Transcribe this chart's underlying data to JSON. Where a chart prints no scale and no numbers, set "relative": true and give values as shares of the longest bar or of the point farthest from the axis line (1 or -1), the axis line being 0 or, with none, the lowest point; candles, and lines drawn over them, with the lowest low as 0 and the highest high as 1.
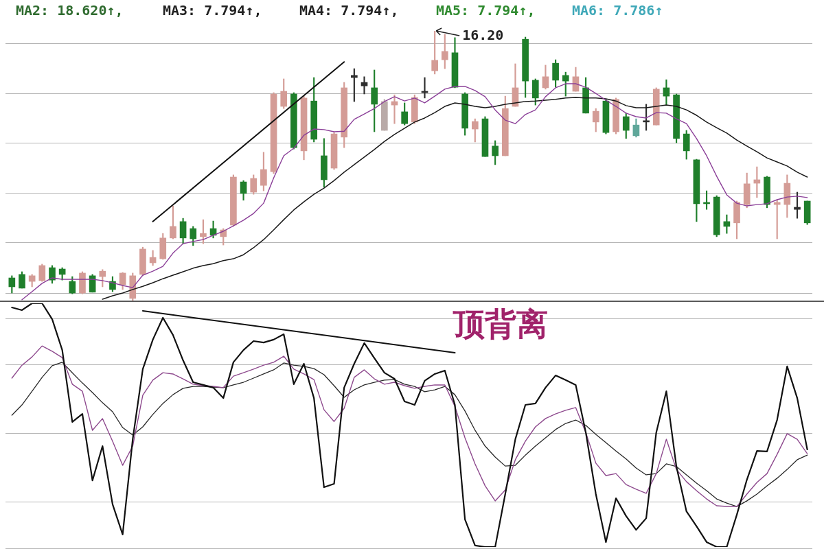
{
  "chart_data": [
    {
      "type": "candlestick",
      "relative": true,
      "tick_labels": false,
      "grid": true,
      "categories": [
        null,
        null,
        null,
        null,
        null,
        null,
        null,
        null,
        null,
        null,
        null,
        null,
        null,
        null,
        null,
        null,
        null,
        null,
        null,
        null,
        null,
        null,
        null,
        null,
        null,
        null,
        null,
        null,
        null,
        null,
        null,
        null,
        null,
        null,
        null,
        null,
        null,
        null,
        null,
        null,
        null,
        null,
        null,
        null,
        null,
        null,
        null,
        null,
        null,
        null,
        null,
        null,
        null,
        null,
        null,
        null,
        null,
        null,
        null,
        null,
        null,
        null,
        null,
        null,
        null,
        null,
        null,
        null,
        null,
        null,
        null,
        null,
        null,
        null,
        null,
        null,
        null,
        null,
        null,
        null
      ],
      "ohlc": [
        [
          0.084,
          0.092,
          0.028,
          0.051
        ],
        [
          0.097,
          0.107,
          0.046,
          0.046
        ],
        [
          0.071,
          0.097,
          0.051,
          0.092
        ],
        [
          0.074,
          0.135,
          0.071,
          0.13
        ],
        [
          0.122,
          0.13,
          0.064,
          0.076
        ],
        [
          0.117,
          0.122,
          0.076,
          0.097
        ],
        [
          0.071,
          0.089,
          0.025,
          0.028
        ],
        [
          0.028,
          0.107,
          0.025,
          0.102
        ],
        [
          0.092,
          0.097,
          0.031,
          0.031
        ],
        [
          0.089,
          0.115,
          0.051,
          0.109
        ],
        [
          0.071,
          0.089,
          0.033,
          0.041
        ],
        [
          0.059,
          0.104,
          0.041,
          0.102
        ],
        [
          0.008,
          0.102,
          0,
          0.092
        ],
        [
          0.097,
          0.198,
          0.092,
          0.191
        ],
        [
          0.14,
          0.186,
          0.13,
          0.16
        ],
        [
          0.155,
          0.249,
          0.153,
          0.232
        ],
        [
          0.232,
          0.351,
          0.229,
          0.275
        ],
        [
          0.293,
          0.305,
          0.211,
          0.232
        ],
        [
          0.267,
          0.275,
          0.204,
          0.229
        ],
        [
          0.237,
          0.3,
          0.211,
          0.249
        ],
        [
          0.267,
          0.295,
          0.232,
          0.242
        ],
        [
          0.237,
          0.267,
          0.206,
          0.262
        ],
        [
          0.28,
          0.466,
          0.275,
          0.458
        ],
        [
          0.44,
          0.445,
          0.372,
          0.397
        ],
        [
          0.402,
          0.466,
          0.394,
          0.453
        ],
        [
          0.427,
          0.55,
          0.407,
          0.486
        ],
        [
          0.478,
          0.771,
          0.471,
          0.766
        ],
        [
          0.72,
          0.822,
          0.712,
          0.776
        ],
        [
          0.766,
          0.771,
          0.562,
          0.567
        ],
        [
          0.555,
          0.758,
          0.522,
          0.751
        ],
        [
          0.74,
          0.827,
          0.588,
          0.598
        ],
        [
          0.537,
          0.601,
          0.42,
          0.448
        ],
        [
          0.491,
          0.623,
          0.486,
          0.618
        ],
        [
          0.606,
          0.809,
          0.567,
          0.789
        ],
        [
          0.835,
          0.86,
          0.738,
          0.827
        ],
        [
          0.809,
          0.83,
          0.766,
          0.796
        ],
        [
          0.789,
          0.855,
          0.626,
          0.728
        ],
        [
          0.631,
          0.746,
          0.631,
          0.738
        ],
        [
          0.725,
          0.763,
          0.656,
          0.738
        ],
        [
          0.7,
          0.733,
          0.651,
          0.656
        ],
        [
          0.662,
          0.763,
          0.656,
          0.753
        ],
        [
          0.776,
          0.827,
          0.751,
          0.771
        ],
        [
          0.852,
          1,
          0.84,
          0.891
        ],
        [
          0.893,
          0.987,
          0.86,
          0.924
        ],
        [
          0.919,
          0.975,
          0.789,
          0.791
        ],
        [
          0.766,
          0.771,
          0.613,
          0.639
        ],
        [
          0.636,
          0.674,
          0.588,
          0.664
        ],
        [
          0.674,
          0.682,
          0.534,
          0.534
        ],
        [
          0.573,
          0.593,
          0.504,
          0.537
        ],
        [
          0.537,
          0.758,
          0.537,
          0.712
        ],
        [
          0.72,
          0.878,
          0.72,
          0.789
        ],
        [
          0.969,
          0.977,
          0.753,
          0.814
        ],
        [
          0.817,
          0.822,
          0.725,
          0.751
        ],
        [
          0.789,
          0.873,
          0.784,
          0.83
        ],
        [
          0.88,
          0.893,
          0.791,
          0.817
        ],
        [
          0.835,
          0.847,
          0.758,
          0.814
        ],
        [
          0.776,
          0.865,
          0.776,
          0.83
        ],
        [
          0.789,
          0.827,
          0.695,
          0.695
        ],
        [
          0.662,
          0.712,
          0.626,
          0.702
        ],
        [
          0.74,
          0.745,
          0.618,
          0.623
        ],
        [
          0.626,
          0.751,
          0.618,
          0.746
        ],
        [
          0.682,
          0.695,
          0.601,
          0.631
        ],
        [
          0.651,
          0.674,
          0.606,
          0.611
        ],
        [
          0.667,
          0.728,
          0.631,
          0.662
        ],
        [
          0.651,
          0.789,
          0.651,
          0.784
        ],
        [
          0.789,
          0.819,
          0.725,
          0.758
        ],
        [
          0.763,
          0.766,
          0.585,
          0.601
        ],
        [
          0.618,
          0.631,
          0.524,
          0.555
        ],
        [
          0.522,
          0.524,
          0.293,
          0.359
        ],
        [
          0.364,
          0.407,
          0.338,
          0.359
        ],
        [
          0.384,
          0.389,
          0.237,
          0.244
        ],
        [
          0.293,
          0.318,
          0.249,
          0.275
        ],
        [
          0.288,
          0.369,
          0.229,
          0.364
        ],
        [
          0.356,
          0.473,
          0.344,
          0.433
        ],
        [
          0.435,
          0.496,
          0.382,
          0.448
        ],
        [
          0.458,
          0.461,
          0.344,
          0.356
        ],
        [
          0.356,
          0.372,
          0.229,
          0.364
        ],
        [
          0.356,
          0.466,
          0.308,
          0.435
        ],
        [
          0.346,
          0.402,
          0.305,
          0.338
        ],
        [
          0.369,
          0.369,
          0.282,
          0.288
        ]
      ],
      "colors": [
        "#1f7f2b",
        "#1f7f2b",
        "#d49c96",
        "#d49c96",
        "#1f7f2b",
        "#1f7f2b",
        "#1f7f2b",
        "#d49c96",
        "#1f7f2b",
        "#d49c96",
        "#1f7f2b",
        "#d49c96",
        "#d49c96",
        "#d49c96",
        "#d49c96",
        "#d49c96",
        "#d49c96",
        "#1f7f2b",
        "#1f7f2b",
        "#d49c96",
        "#1f7f2b",
        "#d49c96",
        "#d49c96",
        "#1f7f2b",
        "#d49c96",
        "#d49c96",
        "#d49c96",
        "#d49c96",
        "#1f7f2b",
        "#d49c96",
        "#1f7f2b",
        "#1f7f2b",
        "#d49c96",
        "#d49c96",
        "#2e2e2e",
        "#2e2e2e",
        "#1f7f2b",
        "#b9aaa8",
        "#d49c96",
        "#1f7f2b",
        "#d49c96",
        "#2e2e2e",
        "#d49c96",
        "#d49c96",
        "#1f7f2b",
        "#1f7f2b",
        "#d49c96",
        "#1f7f2b",
        "#1f7f2b",
        "#d49c96",
        "#d49c96",
        "#1f7f2b",
        "#1f7f2b",
        "#d49c96",
        "#1f7f2b",
        "#1f7f2b",
        "#d49c96",
        "#1f7f2b",
        "#d49c96",
        "#1f7f2b",
        "#d49c96",
        "#1f7f2b",
        "#5fa79a",
        "#2e2e2e",
        "#d49c96",
        "#1f7f2b",
        "#1f7f2b",
        "#1f7f2b",
        "#1f7f2b",
        "#1f7f2b",
        "#1f7f2b",
        "#1f7f2b",
        "#d49c96",
        "#d49c96",
        "#d49c96",
        "#1f7f2b",
        "#d49c96",
        "#d49c96",
        "#2e2e2e",
        "#1f7f2b"
      ],
      "series": [
        {
          "type": "line",
          "color": "#8b3f98",
          "values": [
            null,
            0.003,
            0.033,
            0.064,
            0.084,
            0.079,
            0.079,
            0.079,
            0.079,
            0.074,
            0.066,
            0.056,
            0.048,
            0.094,
            0.109,
            0.127,
            0.176,
            0.211,
            0.219,
            0.226,
            0.242,
            0.257,
            0.277,
            0.298,
            0.323,
            0.361,
            0.455,
            0.537,
            0.565,
            0.613,
            0.636,
            0.634,
            0.626,
            0.628,
            0.672,
            0.692,
            0.712,
            0.738,
            0.756,
            0.74,
            0.751,
            0.733,
            0.758,
            0.784,
            0.794,
            0.794,
            0.779,
            0.756,
            0.707,
            0.669,
            0.656,
            0.69,
            0.707,
            0.756,
            0.789,
            0.804,
            0.804,
            0.791,
            0.768,
            0.743,
            0.72,
            0.695,
            0.682,
            0.677,
            0.697,
            0.695,
            0.674,
            0.656,
            0.601,
            0.537,
            0.461,
            0.392,
            0.361,
            0.351,
            0.356,
            0.359,
            0.374,
            0.384,
            0.387,
            0.382
          ]
        },
        {
          "type": "line",
          "color": "#1a1a1a",
          "values": [
            null,
            null,
            null,
            null,
            null,
            null,
            null,
            null,
            null,
            0.005,
            0.018,
            0.028,
            0.041,
            0.053,
            0.066,
            0.081,
            0.094,
            0.107,
            0.12,
            0.13,
            0.137,
            0.148,
            0.155,
            0.17,
            0.196,
            0.226,
            0.262,
            0.3,
            0.336,
            0.366,
            0.394,
            0.417,
            0.445,
            0.476,
            0.504,
            0.532,
            0.56,
            0.59,
            0.616,
            0.639,
            0.662,
            0.677,
            0.697,
            0.72,
            0.733,
            0.728,
            0.72,
            0.715,
            0.72,
            0.728,
            0.733,
            0.738,
            0.74,
            0.743,
            0.746,
            0.751,
            0.753,
            0.751,
            0.751,
            0.748,
            0.74,
            0.723,
            0.715,
            0.715,
            0.72,
            0.725,
            0.72,
            0.707,
            0.687,
            0.662,
            0.641,
            0.621,
            0.595,
            0.573,
            0.552,
            0.529,
            0.514,
            0.499,
            0.476,
            0.458
          ]
        },
        {
          "type": "line",
          "color": "#111111",
          "values": [
            null,
            null,
            null,
            null,
            null,
            null,
            null,
            null,
            null,
            null,
            null,
            null,
            null,
            null,
            0.293,
            null,
            null,
            null,
            null,
            null,
            null,
            null,
            null,
            null,
            null,
            null,
            null,
            null,
            null,
            null,
            null,
            null,
            null,
            0.885,
            null,
            null,
            null,
            null,
            null,
            null,
            null,
            null,
            null,
            null,
            null,
            null,
            null,
            null,
            null,
            null,
            null,
            null,
            null,
            null,
            null,
            null,
            null,
            null,
            null,
            null,
            null,
            null,
            null,
            null,
            null,
            null,
            null,
            null,
            null,
            null,
            null,
            null,
            null,
            null,
            null,
            null,
            null,
            null,
            null,
            null
          ]
        }
      ],
      "annotations": [
        "MA2: 18.620↑,",
        "MA3: 7.794↑,",
        "MA4: 7.794↑,",
        "MA5: 7.794↑,",
        "MA6: 7.786↑",
        "16.20"
      ]
    },
    {
      "type": "line",
      "relative": true,
      "tick_labels": false,
      "grid": true,
      "categories": [
        null,
        null,
        null,
        null,
        null,
        null,
        null,
        null,
        null,
        null,
        null,
        null,
        null,
        null,
        null,
        null,
        null,
        null,
        null,
        null,
        null,
        null,
        null,
        null,
        null,
        null,
        null,
        null,
        null,
        null,
        null,
        null,
        null,
        null,
        null,
        null,
        null,
        null,
        null,
        null,
        null,
        null,
        null,
        null,
        null,
        null,
        null,
        null,
        null,
        null,
        null,
        null,
        null,
        null,
        null,
        null,
        null,
        null,
        null,
        null,
        null,
        null,
        null,
        null,
        null,
        null,
        null,
        null,
        null,
        null,
        null,
        null,
        null,
        null,
        null,
        null,
        null,
        null,
        null,
        null
      ],
      "series": [
        {
          "color": "#111111",
          "values": [
            0.983,
            0.972,
            1,
            1,
            0.935,
            0.808,
            0.513,
            0.546,
            0.273,
            0.414,
            0.175,
            0.051,
            0.442,
            0.73,
            0.851,
            0.941,
            0.87,
            0.766,
            0.676,
            0.665,
            0.654,
            0.611,
            0.758,
            0.808,
            0.845,
            0.839,
            0.851,
            0.873,
            0.668,
            0.752,
            0.611,
            0.245,
            0.259,
            0.654,
            0.752,
            0.837,
            0.775,
            0.715,
            0.69,
            0.597,
            0.583,
            0.682,
            0.71,
            0.724,
            0.583,
            0.113,
            0.006,
            0,
            0,
            0.217,
            0.442,
            0.583,
            0.589,
            0.654,
            0.704,
            0.685,
            0.665,
            0.47,
            0.217,
            0.02,
            0.2,
            0.127,
            0.07,
            0.118,
            0.47,
            0.639,
            0.33,
            0.146,
            0.085,
            0.02,
            0,
            0,
            0.132,
            0.276,
            0.394,
            0.392,
            0.521,
            0.741,
            0.611,
            0.4
          ]
        },
        {
          "color": "#8e4a8e",
          "values": [
            0.693,
            0.746,
            0.78,
            0.825,
            0.803,
            0.777,
            0.668,
            0.639,
            0.479,
            0.527,
            0.434,
            0.335,
            0.414,
            0.623,
            0.685,
            0.715,
            0.71,
            0.69,
            0.668,
            0.662,
            0.659,
            0.654,
            0.701,
            0.715,
            0.73,
            0.746,
            0.758,
            0.783,
            0.73,
            0.71,
            0.687,
            0.563,
            0.515,
            0.569,
            0.696,
            0.727,
            0.69,
            0.668,
            0.676,
            0.662,
            0.651,
            0.659,
            0.665,
            0.665,
            0.577,
            0.448,
            0.341,
            0.251,
            0.189,
            0.234,
            0.358,
            0.434,
            0.493,
            0.527,
            0.546,
            0.561,
            0.572,
            0.47,
            0.344,
            0.293,
            0.301,
            0.256,
            0.237,
            0.22,
            0.301,
            0.442,
            0.318,
            0.268,
            0.231,
            0.197,
            0.169,
            0.166,
            0.166,
            0.217,
            0.265,
            0.301,
            0.38,
            0.465,
            0.442,
            0.383
          ]
        },
        {
          "color": "#2a2a2a",
          "values": [
            0.541,
            0.583,
            0.639,
            0.696,
            0.744,
            0.758,
            0.715,
            0.673,
            0.634,
            0.592,
            0.555,
            0.49,
            0.459,
            0.493,
            0.544,
            0.589,
            0.625,
            0.651,
            0.659,
            0.659,
            0.656,
            0.654,
            0.665,
            0.676,
            0.693,
            0.71,
            0.727,
            0.755,
            0.746,
            0.741,
            0.732,
            0.707,
            0.662,
            0.614,
            0.645,
            0.665,
            0.676,
            0.685,
            0.687,
            0.668,
            0.659,
            0.637,
            0.645,
            0.659,
            0.625,
            0.558,
            0.479,
            0.414,
            0.369,
            0.332,
            0.335,
            0.377,
            0.414,
            0.448,
            0.482,
            0.507,
            0.521,
            0.499,
            0.462,
            0.428,
            0.394,
            0.361,
            0.324,
            0.296,
            0.301,
            0.341,
            0.33,
            0.296,
            0.262,
            0.231,
            0.197,
            0.18,
            0.166,
            0.189,
            0.217,
            0.251,
            0.282,
            0.318,
            0.358,
            0.377
          ]
        },
        {
          "color": "#111111",
          "values": [
            null,
            null,
            null,
            null,
            null,
            null,
            null,
            null,
            null,
            null,
            null,
            null,
            null,
            0.969,
            null,
            null,
            null,
            null,
            null,
            null,
            null,
            null,
            null,
            null,
            null,
            null,
            null,
            null,
            null,
            null,
            null,
            null,
            null,
            null,
            null,
            null,
            null,
            null,
            null,
            null,
            null,
            null,
            null,
            null,
            0.797,
            null,
            null,
            null,
            null,
            null,
            null,
            null,
            null,
            null,
            null,
            null,
            null,
            null,
            null,
            null,
            null,
            null,
            null,
            null,
            null,
            null,
            null,
            null,
            null,
            null,
            null,
            null,
            null,
            null,
            null,
            null,
            null,
            null,
            null,
            null
          ]
        }
      ],
      "annotations": [
        "顶背离"
      ]
    }
  ]
}
